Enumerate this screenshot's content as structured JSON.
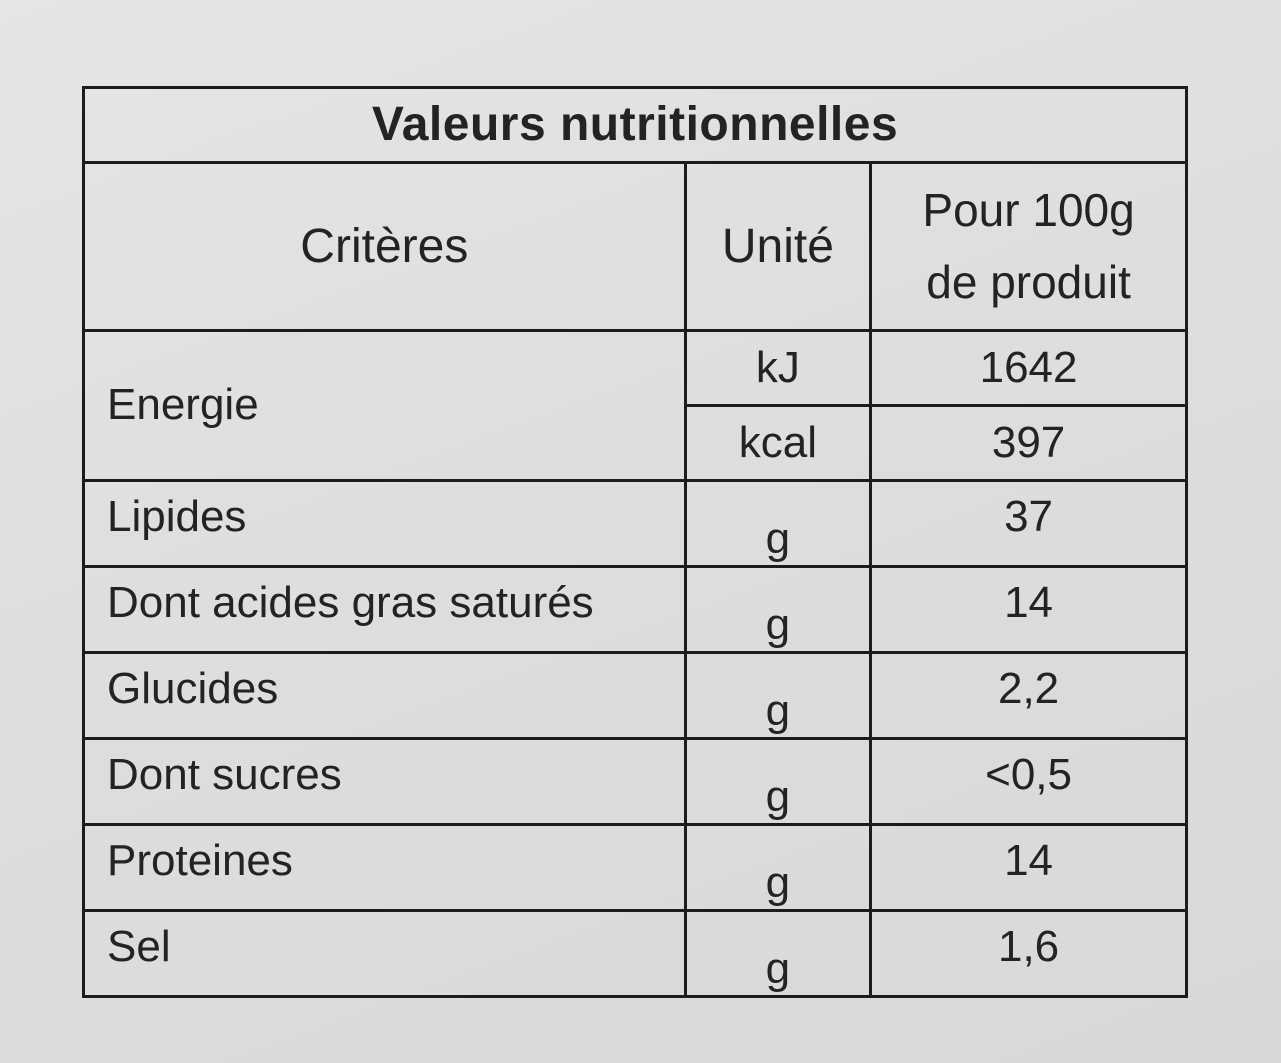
{
  "title": "Valeurs nutritionnelles",
  "headers": {
    "criteria": "Critères",
    "unit": "Unité",
    "per_100g_line1": "Pour 100g",
    "per_100g_line2": "de produit"
  },
  "energy": {
    "label": "Energie",
    "rows": [
      {
        "unit": "kJ",
        "value": "1642"
      },
      {
        "unit": "kcal",
        "value": "397"
      }
    ]
  },
  "rows": [
    {
      "criterion": "Lipides",
      "unit": "g",
      "value": "37"
    },
    {
      "criterion": "Dont acides gras saturés",
      "unit": "g",
      "value": "14"
    },
    {
      "criterion": "Glucides",
      "unit": "g",
      "value": "2,2"
    },
    {
      "criterion": "Dont sucres",
      "unit": "g",
      "value": "<0,5"
    },
    {
      "criterion": "Proteines",
      "unit": "g",
      "value": "14"
    },
    {
      "criterion": "Sel",
      "unit": "g",
      "value": "1,6"
    }
  ]
}
